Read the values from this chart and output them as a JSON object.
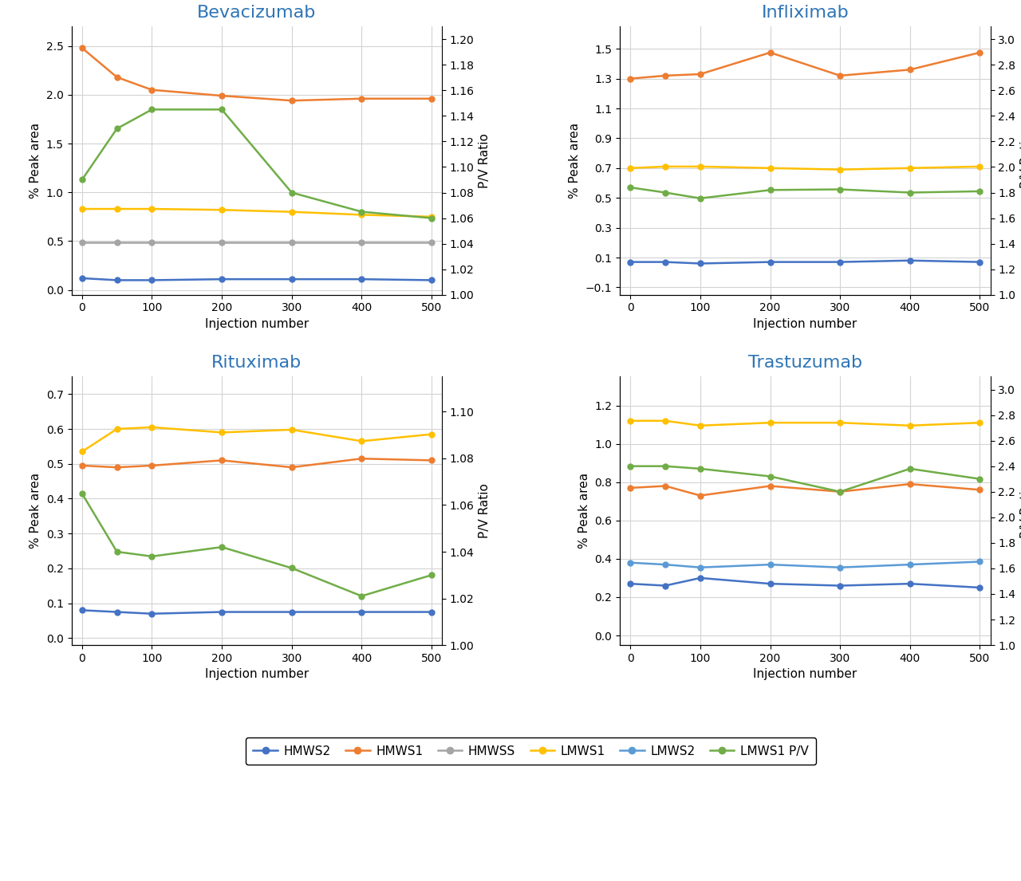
{
  "x": [
    0,
    50,
    100,
    200,
    300,
    400,
    500
  ],
  "panels": [
    {
      "title": "Bevacizumab",
      "ylim_left": [
        -0.05,
        2.7
      ],
      "ylim_right": [
        1.0,
        1.21
      ],
      "yticks_left": [
        0,
        0.5,
        1.0,
        1.5,
        2.0,
        2.5
      ],
      "yticks_right": [
        1.0,
        1.02,
        1.04,
        1.06,
        1.08,
        1.1,
        1.12,
        1.14,
        1.16,
        1.18,
        1.2
      ],
      "series": {
        "HMWS2": [
          0.12,
          0.1,
          0.1,
          0.11,
          0.11,
          0.11,
          0.1
        ],
        "HMWS1": [
          2.48,
          2.18,
          2.05,
          1.99,
          1.94,
          1.96,
          1.96
        ],
        "HMWSS": [
          0.49,
          0.49,
          0.49,
          0.49,
          0.49,
          0.49,
          0.49
        ],
        "LMWS1": [
          0.83,
          0.83,
          0.83,
          0.82,
          0.8,
          0.77,
          0.75
        ],
        "LMWS2": null,
        "LMWS1_PV": [
          1.09,
          1.13,
          1.145,
          1.145,
          1.08,
          1.065,
          1.06
        ]
      }
    },
    {
      "title": "Infliximab",
      "ylim_left": [
        -0.15,
        1.65
      ],
      "ylim_right": [
        1.0,
        3.1
      ],
      "yticks_left": [
        -0.1,
        0.1,
        0.3,
        0.5,
        0.7,
        0.9,
        1.1,
        1.3,
        1.5
      ],
      "yticks_right": [
        1.0,
        1.2,
        1.4,
        1.6,
        1.8,
        2.0,
        2.2,
        2.4,
        2.6,
        2.8,
        3.0
      ],
      "series": {
        "HMWS2": [
          0.07,
          0.07,
          0.06,
          0.07,
          0.07,
          0.08,
          0.07
        ],
        "HMWS1": [
          1.3,
          1.32,
          1.33,
          1.475,
          1.32,
          1.36,
          1.475
        ],
        "HMWSS": null,
        "LMWS1": [
          0.7,
          0.71,
          0.71,
          0.7,
          0.69,
          0.7,
          0.71
        ],
        "LMWS2": null,
        "LMWS1_PV": [
          1.84,
          1.8,
          1.755,
          1.82,
          1.825,
          1.8,
          1.81
        ]
      }
    },
    {
      "title": "Rituximab",
      "ylim_left": [
        -0.02,
        0.75
      ],
      "ylim_right": [
        1.0,
        1.115
      ],
      "yticks_left": [
        0,
        0.1,
        0.2,
        0.3,
        0.4,
        0.5,
        0.6,
        0.7
      ],
      "yticks_right": [
        1.0,
        1.02,
        1.04,
        1.06,
        1.08,
        1.1
      ],
      "series": {
        "HMWS2": [
          0.08,
          0.075,
          0.07,
          0.075,
          0.075,
          0.075,
          0.075
        ],
        "HMWS1": [
          0.495,
          0.49,
          0.495,
          0.51,
          0.49,
          0.515,
          0.51
        ],
        "HMWSS": null,
        "LMWS1": [
          0.535,
          0.6,
          0.605,
          0.59,
          0.598,
          0.565,
          0.585
        ],
        "LMWS2": null,
        "LMWS1_PV": [
          1.065,
          1.04,
          1.038,
          1.042,
          1.033,
          1.021,
          1.03
        ]
      }
    },
    {
      "title": "Trastuzumab",
      "ylim_left": [
        -0.05,
        1.35
      ],
      "ylim_right": [
        1.0,
        3.1
      ],
      "yticks_left": [
        0,
        0.2,
        0.4,
        0.6,
        0.8,
        1.0,
        1.2
      ],
      "yticks_right": [
        1.0,
        1.2,
        1.4,
        1.6,
        1.8,
        2.0,
        2.2,
        2.4,
        2.6,
        2.8,
        3.0
      ],
      "series": {
        "HMWS2": [
          0.27,
          0.26,
          0.3,
          0.27,
          0.26,
          0.27,
          0.25
        ],
        "HMWS1": [
          0.77,
          0.78,
          0.73,
          0.78,
          0.75,
          0.79,
          0.76
        ],
        "HMWSS": null,
        "LMWS1": [
          1.12,
          1.12,
          1.095,
          1.11,
          1.11,
          1.095,
          1.11
        ],
        "LMWS2": [
          0.38,
          0.37,
          0.355,
          0.37,
          0.355,
          0.37,
          0.385
        ],
        "LMWS1_PV": [
          2.4,
          2.4,
          2.38,
          2.32,
          2.2,
          2.38,
          2.3
        ]
      }
    }
  ],
  "colors": {
    "HMWS2": "#4472C4",
    "HMWS1": "#ED7D31",
    "HMWSS": "#A5A5A5",
    "LMWS1": "#FFC000",
    "LMWS2": "#5B9BD5",
    "LMWS1_PV": "#70AD47"
  },
  "legend_labels": [
    "HMWS2",
    "HMWS1",
    "HMWSS",
    "LMWS1",
    "LMWS2",
    "LMWS1 P/V"
  ],
  "legend_colors": [
    "#4472C4",
    "#ED7D31",
    "#A5A5A5",
    "#FFC000",
    "#5B9BD5",
    "#70AD47"
  ],
  "xlabel": "Injection number",
  "ylabel_left": "% Peak area",
  "ylabel_right": "P/V Ratio",
  "title_color": "#2E75B6",
  "title_fontsize": 16,
  "axis_label_fontsize": 11,
  "tick_fontsize": 10
}
